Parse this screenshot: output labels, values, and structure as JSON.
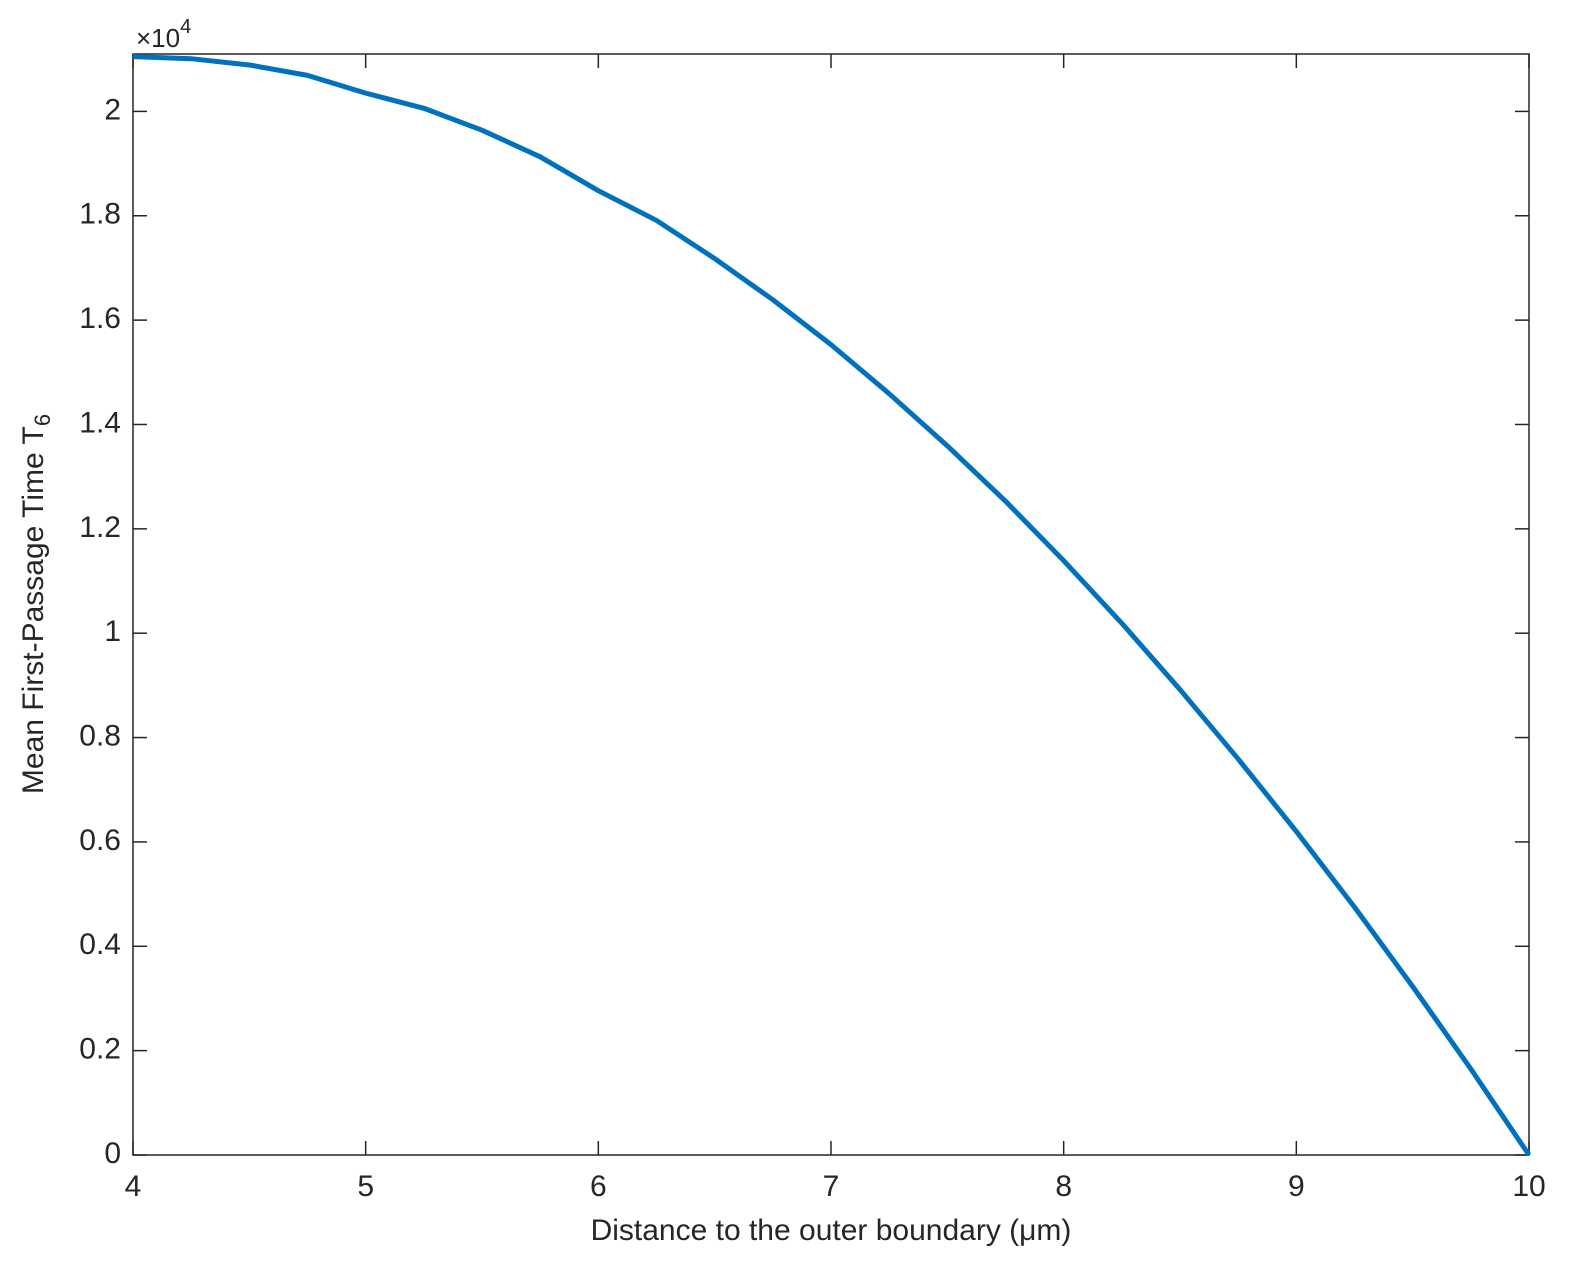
{
  "chart_data": {
    "type": "line",
    "x_label": "Distance to the outer boundary (μm)",
    "y_label": {
      "text": "Mean First-Passage Time T",
      "subscript": "6"
    },
    "y_multiplier": {
      "base": "×10",
      "exponent": "4"
    },
    "x": [
      4,
      4.25,
      4.5,
      4.75,
      5,
      5.25,
      5.5,
      5.75,
      6,
      6.25,
      6.5,
      6.75,
      7,
      7.25,
      7.5,
      7.75,
      8,
      8.25,
      8.5,
      8.75,
      9,
      9.25,
      9.5,
      9.75,
      10
    ],
    "values": [
      2.105,
      2.101,
      2.089,
      2.069,
      2.035,
      2.006,
      1.964,
      1.913,
      1.848,
      1.791,
      1.718,
      1.639,
      1.553,
      1.459,
      1.359,
      1.253,
      1.139,
      1.019,
      0.892,
      0.759,
      0.62,
      0.475,
      0.323,
      0.165,
      0
    ],
    "color": "#0072bd",
    "xlim": [
      4,
      10
    ],
    "xticks": [
      4,
      5,
      6,
      7,
      8,
      9,
      10
    ],
    "ylim": [
      0,
      2.11
    ],
    "yticks": [
      0,
      0.2,
      0.4,
      0.6,
      0.8,
      1,
      1.2,
      1.4,
      1.6,
      1.8,
      2
    ],
    "grid": false
  }
}
